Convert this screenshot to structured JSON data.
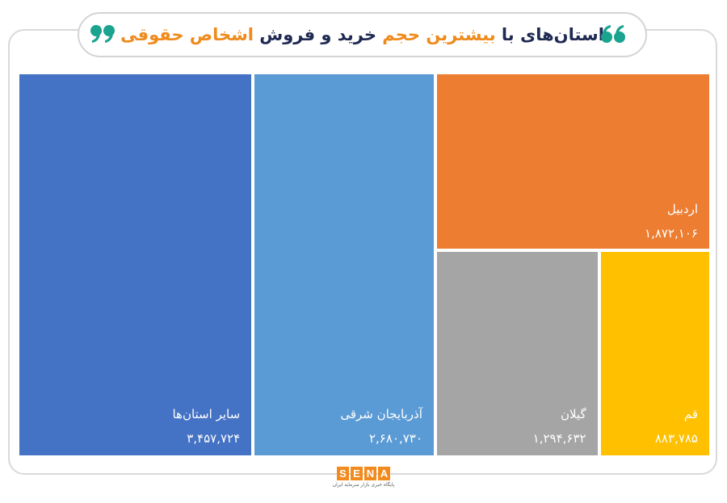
{
  "header": {
    "title_parts": [
      "استان‌های با ",
      "بیشترین حجم",
      " خرید و فروش ",
      "اشخاص حقوقی"
    ]
  },
  "colors": {
    "title_dark": "#1f2a52",
    "title_accent": "#ef8a1c",
    "quote_green": "#1aa38f"
  },
  "chart_data": {
    "type": "treemap",
    "items": [
      {
        "label": "سایر استان‌ها",
        "value_text": "۳,۴۵۷,۷۲۴",
        "value": 3457724,
        "color": "#4472c4"
      },
      {
        "label": "آذربایجان شرقی",
        "value_text": "۲,۶۸۰,۷۳۰",
        "value": 2680730,
        "color": "#5b9bd5"
      },
      {
        "label": "اردبیل",
        "value_text": "۱,۸۷۲,۱۰۶",
        "value": 1872106,
        "color": "#ed7d31"
      },
      {
        "label": "گیلان",
        "value_text": "۱,۲۹۴,۶۳۲",
        "value": 1294632,
        "color": "#a5a5a5"
      },
      {
        "label": "قم",
        "value_text": "۸۸۳,۷۸۵",
        "value": 883785,
        "color": "#ffc000"
      }
    ]
  },
  "logo": {
    "letters": [
      "S",
      "E",
      "N",
      "A"
    ],
    "subtitle": "پایگاه خبری بازار سرمایه ایران"
  }
}
